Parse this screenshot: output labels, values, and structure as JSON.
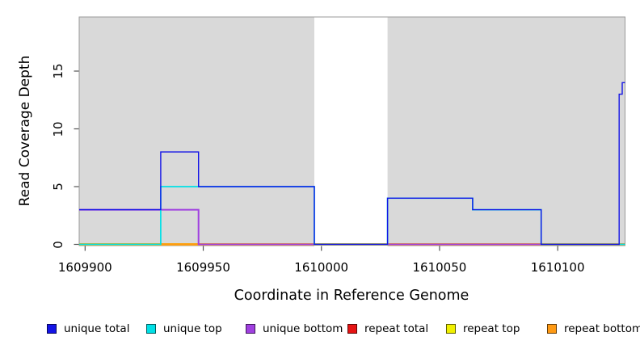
{
  "chart_data": {
    "type": "step",
    "title": "",
    "xlabel": "Coordinate in Reference Genome",
    "ylabel": "Read Coverage Depth",
    "xlim": [
      1609897.5,
      1610128.5
    ],
    "ylim": [
      0,
      19.7
    ],
    "grid": false,
    "plot_background": "#d9d9d9",
    "xticks": [
      1609900,
      1609950,
      1610000,
      1610050,
      1610100
    ],
    "xtick_labels": [
      "1609900",
      "1609950",
      "1610000",
      "1610050",
      "1610100"
    ],
    "yticks": [
      0,
      5,
      10,
      15
    ],
    "ytick_labels": [
      "0",
      "5",
      "10",
      "15"
    ],
    "masked_region": {
      "x_start": 1609997,
      "x_end": 1610028,
      "color": "#ffffff"
    },
    "series": [
      {
        "name": "unique total",
        "color": "#1414e6",
        "points": [
          [
            1609897.5,
            3
          ],
          [
            1609932,
            3
          ],
          [
            1609932,
            8
          ],
          [
            1609948,
            8
          ],
          [
            1609948,
            5
          ],
          [
            1609997,
            5
          ],
          [
            1609997,
            0
          ],
          [
            1610028,
            0
          ],
          [
            1610028,
            4
          ],
          [
            1610064,
            4
          ],
          [
            1610064,
            3
          ],
          [
            1610093,
            3
          ],
          [
            1610093,
            0
          ],
          [
            1610126,
            0
          ],
          [
            1610126,
            13
          ],
          [
            1610127.3,
            13
          ],
          [
            1610127.3,
            14
          ],
          [
            1610128.5,
            14
          ]
        ]
      },
      {
        "name": "unique top",
        "color": "#00e0e6",
        "points": [
          [
            1609897.5,
            0
          ],
          [
            1609932,
            0
          ],
          [
            1609932,
            5
          ],
          [
            1609997,
            5
          ],
          [
            1609997,
            0
          ],
          [
            1610028,
            0
          ],
          [
            1610028,
            4
          ],
          [
            1610064,
            4
          ],
          [
            1610064,
            3
          ],
          [
            1610093,
            3
          ],
          [
            1610093,
            0
          ],
          [
            1610128.5,
            0
          ]
        ]
      },
      {
        "name": "unique bottom",
        "color": "#a040e0",
        "points": [
          [
            1609897.5,
            3
          ],
          [
            1609948,
            3
          ],
          [
            1609948,
            0
          ],
          [
            1610128.5,
            0
          ]
        ]
      },
      {
        "name": "repeat total",
        "color": "#e61414",
        "points": [
          [
            1609897.5,
            0
          ],
          [
            1610128.5,
            0
          ]
        ]
      },
      {
        "name": "repeat top",
        "color": "#f0f000",
        "points": [
          [
            1609897.5,
            0
          ],
          [
            1610128.5,
            0
          ]
        ]
      },
      {
        "name": "repeat bottom",
        "color": "#ff9a14",
        "points": [
          [
            1609897.5,
            0
          ],
          [
            1610128.5,
            0
          ]
        ]
      }
    ]
  },
  "legend": {
    "items": [
      {
        "label": "unique total",
        "color": "#1414e6"
      },
      {
        "label": "unique top",
        "color": "#00e0e6"
      },
      {
        "label": "unique bottom",
        "color": "#a040e0"
      },
      {
        "label": "repeat total",
        "color": "#e61414"
      },
      {
        "label": "repeat top",
        "color": "#f0f000"
      },
      {
        "label": "repeat bottom",
        "color": "#ff9a14"
      }
    ]
  }
}
